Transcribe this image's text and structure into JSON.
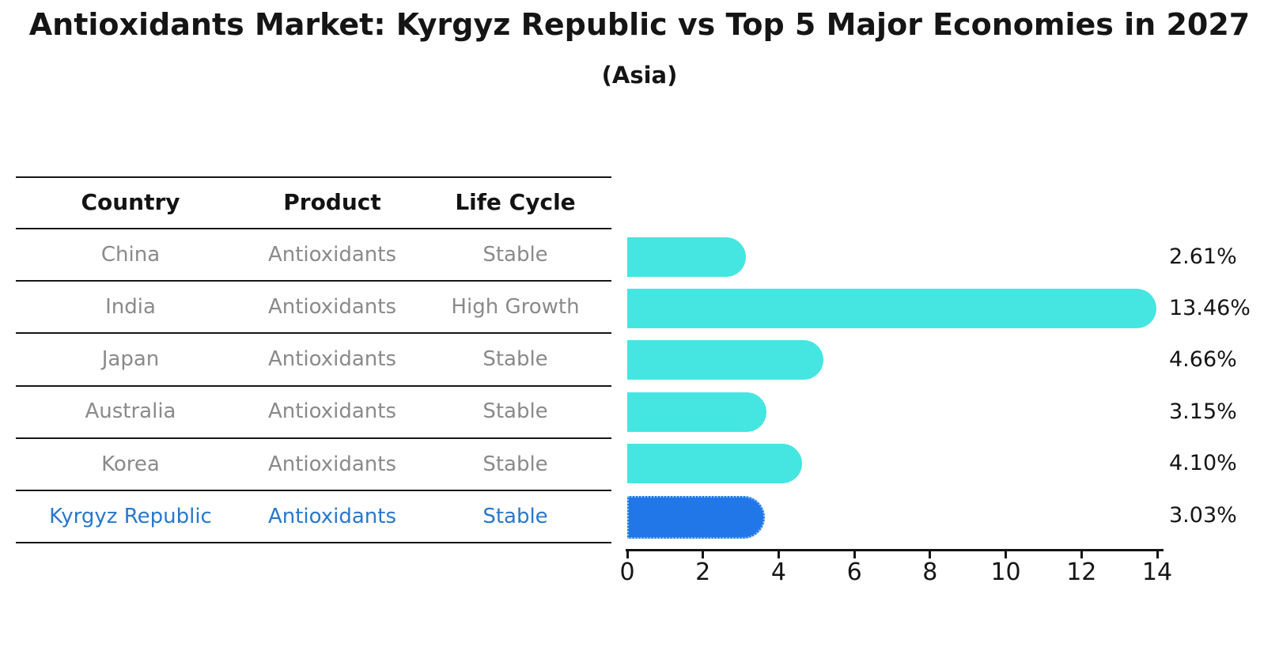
{
  "title": "Antioxidants Market: Kyrgyz Republic vs Top 5 Major Economies in 2027",
  "subtitle": "(Asia)",
  "table": {
    "headers": [
      "Country",
      "Product",
      "Life Cycle"
    ],
    "rows": [
      {
        "country": "China",
        "product": "Antioxidants",
        "life_cycle": "Stable",
        "highlighted": false
      },
      {
        "country": "India",
        "product": "Antioxidants",
        "life_cycle": "High Growth",
        "highlighted": false
      },
      {
        "country": "Japan",
        "product": "Antioxidants",
        "life_cycle": "Stable",
        "highlighted": false
      },
      {
        "country": "Australia",
        "product": "Antioxidants",
        "life_cycle": "Stable",
        "highlighted": false
      },
      {
        "country": "Korea",
        "product": "Antioxidants",
        "life_cycle": "Stable",
        "highlighted": false
      },
      {
        "country": "Kyrgyz Republic",
        "product": "Antioxidants",
        "life_cycle": "Stable",
        "highlighted": true
      }
    ]
  },
  "chart_data": {
    "type": "bar",
    "orientation": "horizontal",
    "title": "Antioxidants Market: Kyrgyz Republic vs Top 5 Major Economies in 2027 (Asia)",
    "categories": [
      "China",
      "India",
      "Japan",
      "Australia",
      "Korea",
      "Kyrgyz Republic"
    ],
    "values": [
      2.61,
      13.46,
      4.66,
      3.15,
      4.1,
      3.03
    ],
    "value_labels": [
      "2.61%",
      "13.46%",
      "4.66%",
      "3.15%",
      "4.10%",
      "3.03%"
    ],
    "unit": "%",
    "xlim": [
      0,
      14
    ],
    "xticks": [
      0,
      2,
      4,
      6,
      8,
      10,
      12,
      14
    ],
    "grid": false,
    "legend": "none",
    "highlight_index": 5
  },
  "colors": {
    "bar": "#45E6E1",
    "highlight_bar": "#2176E8",
    "highlight_edge": "#8CC4F0",
    "highlight_text": "#2878CC",
    "row_text": "#8A8A8A",
    "text": "#151515"
  }
}
